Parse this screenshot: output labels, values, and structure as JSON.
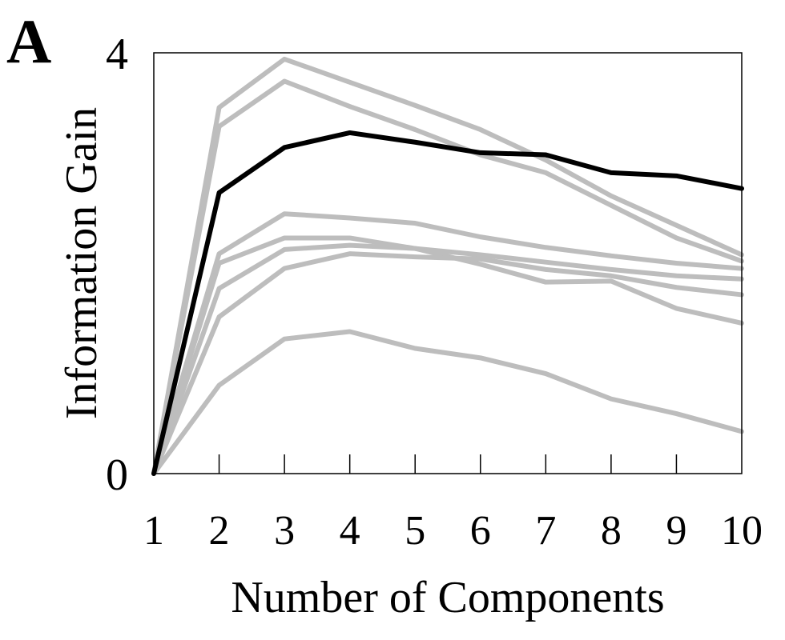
{
  "panel_label": "A",
  "chart_data": {
    "type": "line",
    "title": "",
    "xlabel": "Number of Components",
    "ylabel": "Information Gain",
    "x": [
      1,
      2,
      3,
      4,
      5,
      6,
      7,
      8,
      9,
      10
    ],
    "x_tick_labels": [
      "1",
      "2",
      "3",
      "4",
      "5",
      "6",
      "7",
      "8",
      "9",
      "10"
    ],
    "ylim": [
      0,
      4
    ],
    "y_tick_labels": [
      "0",
      "4"
    ],
    "grid": false,
    "highlight_color": "#000000",
    "background_color": "#bdbdbd",
    "series": [
      {
        "values": [
          0,
          3.48,
          3.94,
          3.72,
          3.5,
          3.27,
          2.98,
          2.64,
          2.36,
          2.08
        ],
        "highlight": false
      },
      {
        "values": [
          0,
          3.3,
          3.73,
          3.49,
          3.27,
          3.03,
          2.86,
          2.55,
          2.24,
          2.02
        ],
        "highlight": false
      },
      {
        "values": [
          0,
          2.09,
          2.47,
          2.43,
          2.38,
          2.25,
          2.15,
          2.07,
          2.0,
          1.95
        ],
        "highlight": false
      },
      {
        "values": [
          0,
          2.0,
          2.24,
          2.24,
          2.14,
          2.08,
          2.01,
          1.94,
          1.88,
          1.85
        ],
        "highlight": false
      },
      {
        "values": [
          0,
          1.76,
          2.13,
          2.17,
          2.14,
          1.99,
          1.82,
          1.83,
          1.57,
          1.43
        ],
        "highlight": false
      },
      {
        "values": [
          0,
          1.49,
          1.95,
          2.09,
          2.06,
          2.04,
          1.94,
          1.88,
          1.77,
          1.7
        ],
        "highlight": false
      },
      {
        "values": [
          0,
          0.84,
          1.28,
          1.35,
          1.19,
          1.1,
          0.95,
          0.71,
          0.57,
          0.4
        ],
        "highlight": false
      },
      {
        "values": [
          0,
          2.67,
          3.1,
          3.24,
          3.15,
          3.05,
          3.03,
          2.86,
          2.83,
          2.71
        ],
        "highlight": true
      }
    ]
  }
}
